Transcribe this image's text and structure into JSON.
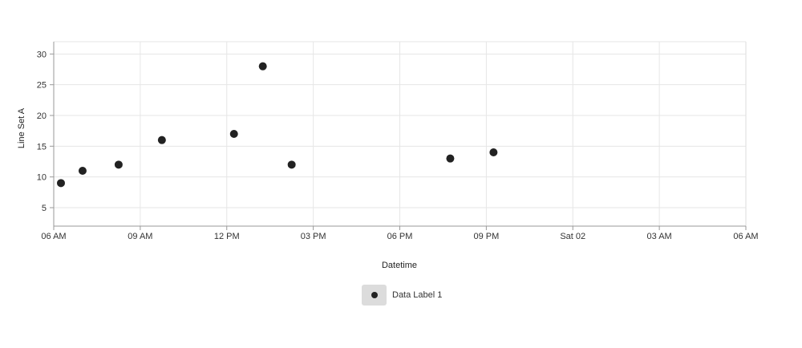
{
  "chart_data": {
    "type": "scatter",
    "xlabel": "Datetime",
    "ylabel": "Line Set A",
    "x_ticks": [
      "06 AM",
      "09 AM",
      "12 PM",
      "03 PM",
      "06 PM",
      "09 PM",
      "Sat 02",
      "03 AM",
      "06 AM"
    ],
    "x_tick_hours": [
      0,
      3,
      6,
      9,
      12,
      15,
      18,
      21,
      24
    ],
    "y_ticks": [
      5,
      10,
      15,
      20,
      25,
      30
    ],
    "xlim_hours": [
      0,
      24
    ],
    "ylim": [
      2,
      32
    ],
    "grid": true,
    "legend_position": "bottom-center",
    "series": [
      {
        "name": "Data Label 1",
        "color": "#222222",
        "points": [
          {
            "x": "06:15 AM",
            "y": 9
          },
          {
            "x": "07:00 AM",
            "y": 11
          },
          {
            "x": "08:15 AM",
            "y": 12
          },
          {
            "x": "09:45 AM",
            "y": 16
          },
          {
            "x": "12:15 PM",
            "y": 17
          },
          {
            "x": "01:15 PM",
            "y": 28
          },
          {
            "x": "02:15 PM",
            "y": 12
          },
          {
            "x": "07:45 PM",
            "y": 13
          },
          {
            "x": "09:15 PM",
            "y": 14
          }
        ]
      }
    ]
  }
}
